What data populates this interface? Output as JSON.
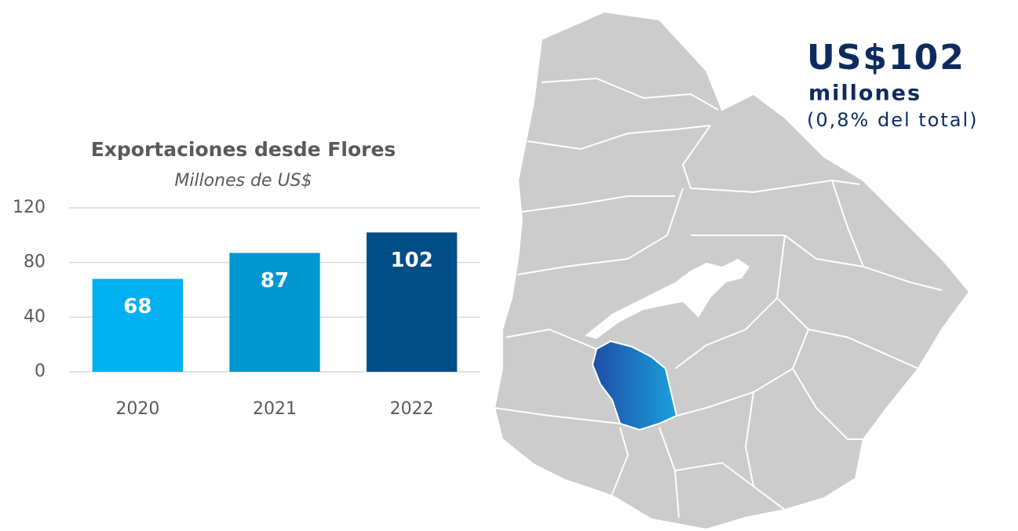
{
  "chart_data": {
    "type": "bar",
    "title": "Exportaciones desde Flores",
    "subtitle": "Millones de US$",
    "categories": [
      "2020",
      "2021",
      "2022"
    ],
    "values": [
      68,
      87,
      102
    ],
    "colors": [
      "#00b0f0",
      "#0097d1",
      "#004d87"
    ],
    "ylim": [
      0,
      120
    ],
    "yticks": [
      0,
      40,
      80,
      120
    ],
    "grid": true
  },
  "map_callout": {
    "amount": "US$102",
    "unit": "millones",
    "share": "(0,8% del total)"
  }
}
